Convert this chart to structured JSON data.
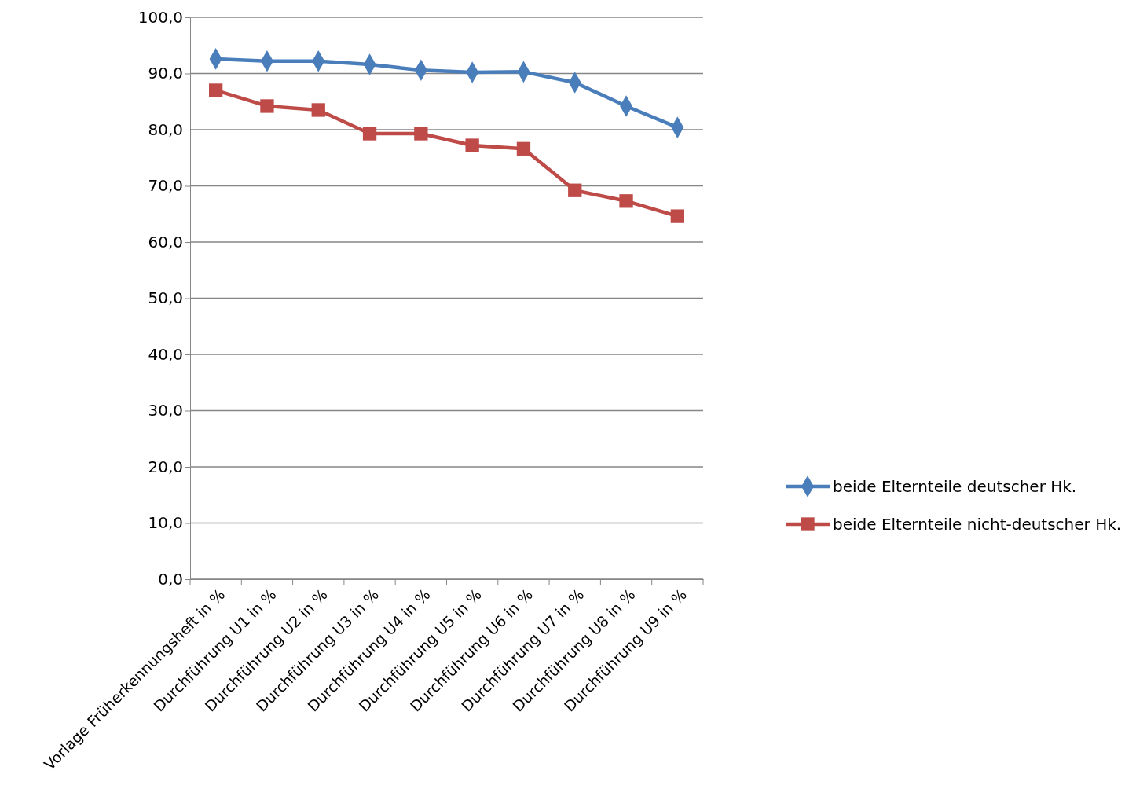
{
  "chart_data": {
    "type": "line",
    "categories": [
      "Vorlage Früherkennungsheft in %",
      "Durchführung U1 in %",
      "Durchführung U2 in %",
      "Durchführung U3 in %",
      "Durchführung U4 in %",
      "Durchführung U5 in %",
      "Durchführung U6 in %",
      "Durchführung U7 in %",
      "Durchführung U8 in %",
      "Durchführung U9 in %"
    ],
    "series": [
      {
        "name": "beide Elternteile deutscher Hk.",
        "color": "#4a7ebb",
        "marker": "diamond",
        "values": [
          92.6,
          92.2,
          92.2,
          91.6,
          90.6,
          90.2,
          90.3,
          88.4,
          84.2,
          80.4
        ]
      },
      {
        "name": "beide Elternteile nicht-deutscher Hk.",
        "color": "#be4b48",
        "marker": "square",
        "values": [
          87.0,
          84.2,
          83.5,
          79.3,
          79.3,
          77.2,
          76.6,
          69.2,
          67.3,
          64.6
        ]
      }
    ],
    "ylim": [
      0,
      100
    ],
    "yticks": [
      {
        "value": 0,
        "label": "0,0"
      },
      {
        "value": 10,
        "label": "10,0"
      },
      {
        "value": 20,
        "label": "20,0"
      },
      {
        "value": 30,
        "label": "30,0"
      },
      {
        "value": 40,
        "label": "40,0"
      },
      {
        "value": 50,
        "label": "50,0"
      },
      {
        "value": 60,
        "label": "60,0"
      },
      {
        "value": 70,
        "label": "70,0"
      },
      {
        "value": 80,
        "label": "80,0"
      },
      {
        "value": 90,
        "label": "90,0"
      },
      {
        "value": 100,
        "label": "100,0"
      }
    ],
    "grid": "y",
    "legend": "right"
  }
}
